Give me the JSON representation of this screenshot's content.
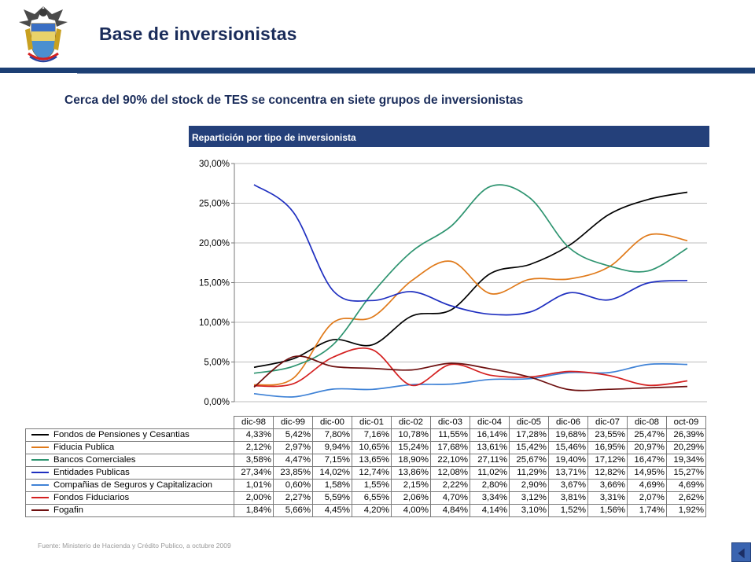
{
  "slide": {
    "title": "Base de inversionistas",
    "subtitle": "Cerca del 90% del stock de TES se concentra en siete grupos de inversionistas",
    "panel_title": "Repartición por tipo de inversionista",
    "footnote": "Fuente: Ministerio de Hacienda y Crédito Publico, a octubre 2009"
  },
  "colors": {
    "title_text": "#1a2c5a",
    "header_bar": "#1c3f74",
    "panel_header": "#24407a"
  },
  "chart_data": {
    "type": "line",
    "categories": [
      "dic-98",
      "dic-99",
      "dic-00",
      "dic-01",
      "dic-02",
      "dic-03",
      "dic-04",
      "dic-05",
      "dic-06",
      "dic-07",
      "dic-08",
      "oct-09"
    ],
    "y_ticks": [
      "0,00%",
      "5,00%",
      "10,00%",
      "15,00%",
      "20,00%",
      "25,00%",
      "30,00%"
    ],
    "ylim": [
      0,
      30
    ],
    "grid": "horizontal",
    "legend": "table-below",
    "series": [
      {
        "name": "Fondos de Pensiones y Cesantias",
        "color": "#000000",
        "values": [
          4.33,
          5.42,
          7.8,
          7.16,
          10.78,
          11.55,
          16.14,
          17.28,
          19.68,
          23.55,
          25.47,
          26.39
        ],
        "labels": [
          "4,33%",
          "5,42%",
          "7,80%",
          "7,16%",
          "10,78%",
          "11,55%",
          "16,14%",
          "17,28%",
          "19,68%",
          "23,55%",
          "25,47%",
          "26,39%"
        ]
      },
      {
        "name": "Fiducia Publica",
        "color": "#e07a1a",
        "values": [
          2.12,
          2.97,
          9.94,
          10.65,
          15.24,
          17.68,
          13.61,
          15.42,
          15.46,
          16.95,
          20.97,
          20.29
        ],
        "labels": [
          "2,12%",
          "2,97%",
          "9,94%",
          "10,65%",
          "15,24%",
          "17,68%",
          "13,61%",
          "15,42%",
          "15,46%",
          "16,95%",
          "20,97%",
          "20,29%"
        ]
      },
      {
        "name": "Bancos Comerciales",
        "color": "#2e9470",
        "values": [
          3.58,
          4.47,
          7.15,
          13.65,
          18.9,
          22.1,
          27.11,
          25.67,
          19.4,
          17.12,
          16.47,
          19.34
        ],
        "labels": [
          "3,58%",
          "4,47%",
          "7,15%",
          "13,65%",
          "18,90%",
          "22,10%",
          "27,11%",
          "25,67%",
          "19,40%",
          "17,12%",
          "16,47%",
          "19,34%"
        ]
      },
      {
        "name": "Entidades Publicas",
        "color": "#1f2fc0",
        "values": [
          27.34,
          23.85,
          14.02,
          12.74,
          13.86,
          12.08,
          11.02,
          11.29,
          13.71,
          12.82,
          14.95,
          15.27
        ],
        "labels": [
          "27,34%",
          "23,85%",
          "14,02%",
          "12,74%",
          "13,86%",
          "12,08%",
          "11,02%",
          "11,29%",
          "13,71%",
          "12,82%",
          "14,95%",
          "15,27%"
        ]
      },
      {
        "name": "Compañias de Seguros y Capitalizacion",
        "color": "#3f82d6",
        "values": [
          1.01,
          0.6,
          1.58,
          1.55,
          2.15,
          2.22,
          2.8,
          2.9,
          3.67,
          3.66,
          4.69,
          4.69
        ],
        "labels": [
          "1,01%",
          "0,60%",
          "1,58%",
          "1,55%",
          "2,15%",
          "2,22%",
          "2,80%",
          "2,90%",
          "3,67%",
          "3,66%",
          "4,69%",
          "4,69%"
        ]
      },
      {
        "name": "Fondos Fiduciarios",
        "color": "#d42020",
        "values": [
          2.0,
          2.27,
          5.59,
          6.55,
          2.06,
          4.7,
          3.34,
          3.12,
          3.81,
          3.31,
          2.07,
          2.62
        ],
        "labels": [
          "2,00%",
          "2,27%",
          "5,59%",
          "6,55%",
          "2,06%",
          "4,70%",
          "3,34%",
          "3,12%",
          "3,81%",
          "3,31%",
          "2,07%",
          "2,62%"
        ]
      },
      {
        "name": "Fogafin",
        "color": "#6e1010",
        "values": [
          1.84,
          5.66,
          4.45,
          4.2,
          4.0,
          4.84,
          4.14,
          3.1,
          1.52,
          1.56,
          1.74,
          1.92
        ],
        "labels": [
          "1,84%",
          "5,66%",
          "4,45%",
          "4,20%",
          "4,00%",
          "4,84%",
          "4,14%",
          "3,10%",
          "1,52%",
          "1,56%",
          "1,74%",
          "1,92%"
        ]
      }
    ]
  }
}
